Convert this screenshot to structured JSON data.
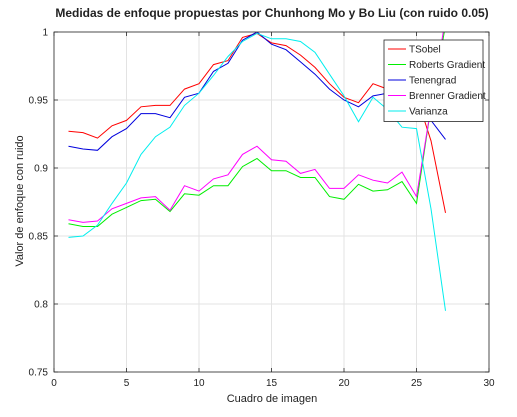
{
  "chart_data": {
    "type": "line",
    "title": "Medidas de enfoque propuestas por Chunhong Mo y Bo Liu (con ruido 0.05)",
    "xlabel": "Cuadro de imagen",
    "ylabel": "Valor de enfoque con ruido",
    "xlim": [
      0,
      30
    ],
    "ylim": [
      0.75,
      1.0
    ],
    "xticks": [
      "0",
      "5",
      "10",
      "15",
      "20",
      "25",
      "30"
    ],
    "yticks": [
      "0.75",
      "0.8",
      "0.85",
      "0.9",
      "0.95",
      "1"
    ],
    "grid": true,
    "legend_position": "top-right",
    "x": [
      1,
      2,
      3,
      4,
      5,
      6,
      7,
      8,
      9,
      10,
      11,
      12,
      13,
      14,
      15,
      16,
      17,
      18,
      19,
      20,
      21,
      22,
      23,
      24,
      25,
      26,
      27
    ],
    "series": [
      {
        "name": "TSobel",
        "color": "#ff0000",
        "values": [
          0.927,
          0.926,
          0.922,
          0.931,
          0.935,
          0.945,
          0.946,
          0.946,
          0.958,
          0.962,
          0.976,
          0.979,
          0.996,
          0.999,
          0.992,
          0.99,
          0.983,
          0.974,
          0.962,
          0.952,
          0.948,
          0.962,
          0.958,
          0.954,
          0.953,
          0.92,
          0.867
        ]
      },
      {
        "name": "Roberts Gradient",
        "color": "#00ee00",
        "values": [
          0.859,
          0.857,
          0.857,
          0.866,
          0.871,
          0.876,
          0.877,
          0.868,
          0.881,
          0.88,
          0.887,
          0.887,
          0.901,
          0.907,
          0.898,
          0.898,
          0.893,
          0.893,
          0.879,
          0.877,
          0.888,
          0.883,
          0.884,
          0.89,
          0.874,
          0.945,
          1.005
        ]
      },
      {
        "name": "Tenengrad",
        "color": "#0000dd",
        "values": [
          0.916,
          0.914,
          0.913,
          0.923,
          0.929,
          0.94,
          0.94,
          0.937,
          0.952,
          0.955,
          0.971,
          0.977,
          0.994,
          1.0,
          0.991,
          0.987,
          0.978,
          0.969,
          0.958,
          0.95,
          0.945,
          0.953,
          0.955,
          0.952,
          0.952,
          0.935,
          0.921
        ]
      },
      {
        "name": "Brenner Gradient",
        "color": "#ff00ff",
        "values": [
          0.862,
          0.86,
          0.861,
          0.87,
          0.874,
          0.878,
          0.879,
          0.869,
          0.887,
          0.883,
          0.892,
          0.895,
          0.91,
          0.916,
          0.906,
          0.905,
          0.896,
          0.899,
          0.885,
          0.885,
          0.895,
          0.891,
          0.889,
          0.897,
          0.879,
          0.945,
          1.01
        ]
      },
      {
        "name": "Varianza",
        "color": "#00eeee",
        "values": [
          0.849,
          0.85,
          0.858,
          0.874,
          0.889,
          0.91,
          0.923,
          0.93,
          0.946,
          0.955,
          0.968,
          0.982,
          0.993,
          0.999,
          0.995,
          0.995,
          0.993,
          0.985,
          0.969,
          0.953,
          0.934,
          0.952,
          0.943,
          0.93,
          0.929,
          0.87,
          0.795
        ]
      }
    ]
  }
}
